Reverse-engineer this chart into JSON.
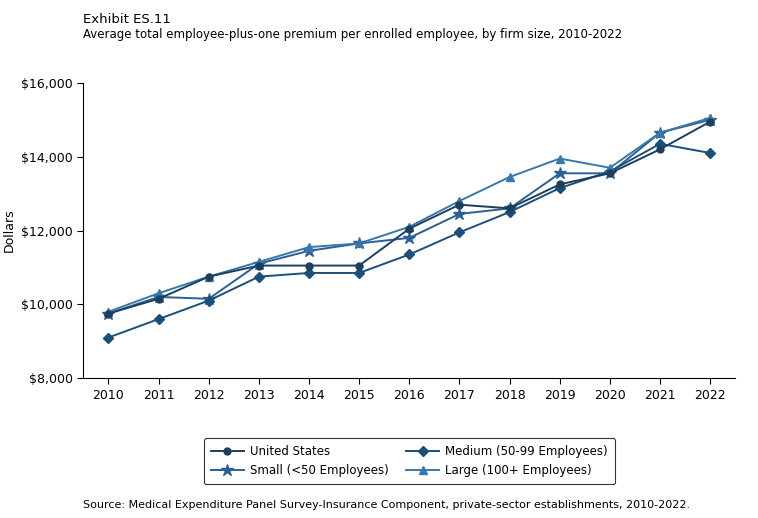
{
  "years": [
    2010,
    2011,
    2012,
    2013,
    2014,
    2015,
    2016,
    2017,
    2018,
    2019,
    2020,
    2021,
    2022
  ],
  "united_states": [
    9750,
    10150,
    10750,
    11050,
    11050,
    11050,
    12050,
    12700,
    12600,
    13250,
    13550,
    14200,
    14950
  ],
  "small": [
    9750,
    10200,
    10150,
    11100,
    11450,
    11650,
    11800,
    12450,
    12600,
    13550,
    13550,
    14650,
    15000
  ],
  "medium": [
    9100,
    9600,
    10100,
    10750,
    10850,
    10850,
    11350,
    11950,
    12500,
    13150,
    13600,
    14350,
    14100
  ],
  "large": [
    9800,
    10300,
    10750,
    11150,
    11550,
    11650,
    12100,
    12800,
    13450,
    13950,
    13700,
    14650,
    15050
  ],
  "ylim": [
    8000,
    16000
  ],
  "yticks": [
    8000,
    10000,
    12000,
    14000,
    16000
  ],
  "title_line1": "Exhibit ES.11",
  "title_line2": "Average total employee-plus-one premium per enrolled employee, by firm size, 2010-2022",
  "ylabel": "Dollars",
  "source": "Source: Medical Expenditure Panel Survey-Insurance Component, private-sector establishments, 2010-2022.",
  "legend_labels": [
    "United States",
    "Small (<50 Employees)",
    "Medium (50-99 Employees)",
    "Large (100+ Employees)"
  ]
}
